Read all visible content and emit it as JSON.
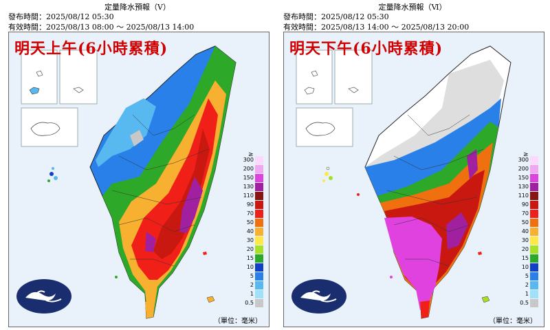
{
  "panels": [
    {
      "title": "定量降水預報（Ⅴ）",
      "issue_time": "發布時間：2025/08/12 05:30",
      "valid_time": "有效時間：2025/08/13 08:00 ～ 2025/08/13 14:00",
      "banner": "明天上午(6小時累積)",
      "unit": "（單位：毫米）",
      "peak_regions": [
        "southwest mountains",
        "central-south mountains",
        "east coast"
      ]
    },
    {
      "title": "定量降水預報（Ⅵ）",
      "issue_time": "發布時間：2025/08/12 05:30",
      "valid_time": "有效時間：2025/08/13 14:00 ～ 2025/08/13 20:00",
      "banner": "明天下午(6小時累積)",
      "unit": "（單位：毫米）",
      "peak_regions": [
        "southwest plains",
        "south",
        "central mountains"
      ]
    }
  ],
  "legend": {
    "ge_symbol": "≥",
    "levels": [
      {
        "label": "300",
        "color": "#fdd8fd"
      },
      {
        "label": "200",
        "color": "#f0a8f0"
      },
      {
        "label": "150",
        "color": "#e042e0"
      },
      {
        "label": "130",
        "color": "#a020a0"
      },
      {
        "label": "110",
        "color": "#8a1410"
      },
      {
        "label": "90",
        "color": "#c81810"
      },
      {
        "label": "70",
        "color": "#f02018"
      },
      {
        "label": "50",
        "color": "#f07010"
      },
      {
        "label": "40",
        "color": "#f8b030"
      },
      {
        "label": "30",
        "color": "#fde848"
      },
      {
        "label": "20",
        "color": "#a8e028"
      },
      {
        "label": "15",
        "color": "#2ea828"
      },
      {
        "label": "10",
        "color": "#1040c8"
      },
      {
        "label": "5",
        "color": "#2880e8"
      },
      {
        "label": "2",
        "color": "#58b8f0"
      },
      {
        "label": "1",
        "color": "#a0e0f8"
      },
      {
        "label": "0.5",
        "color": "#c8c8c8"
      }
    ]
  }
}
